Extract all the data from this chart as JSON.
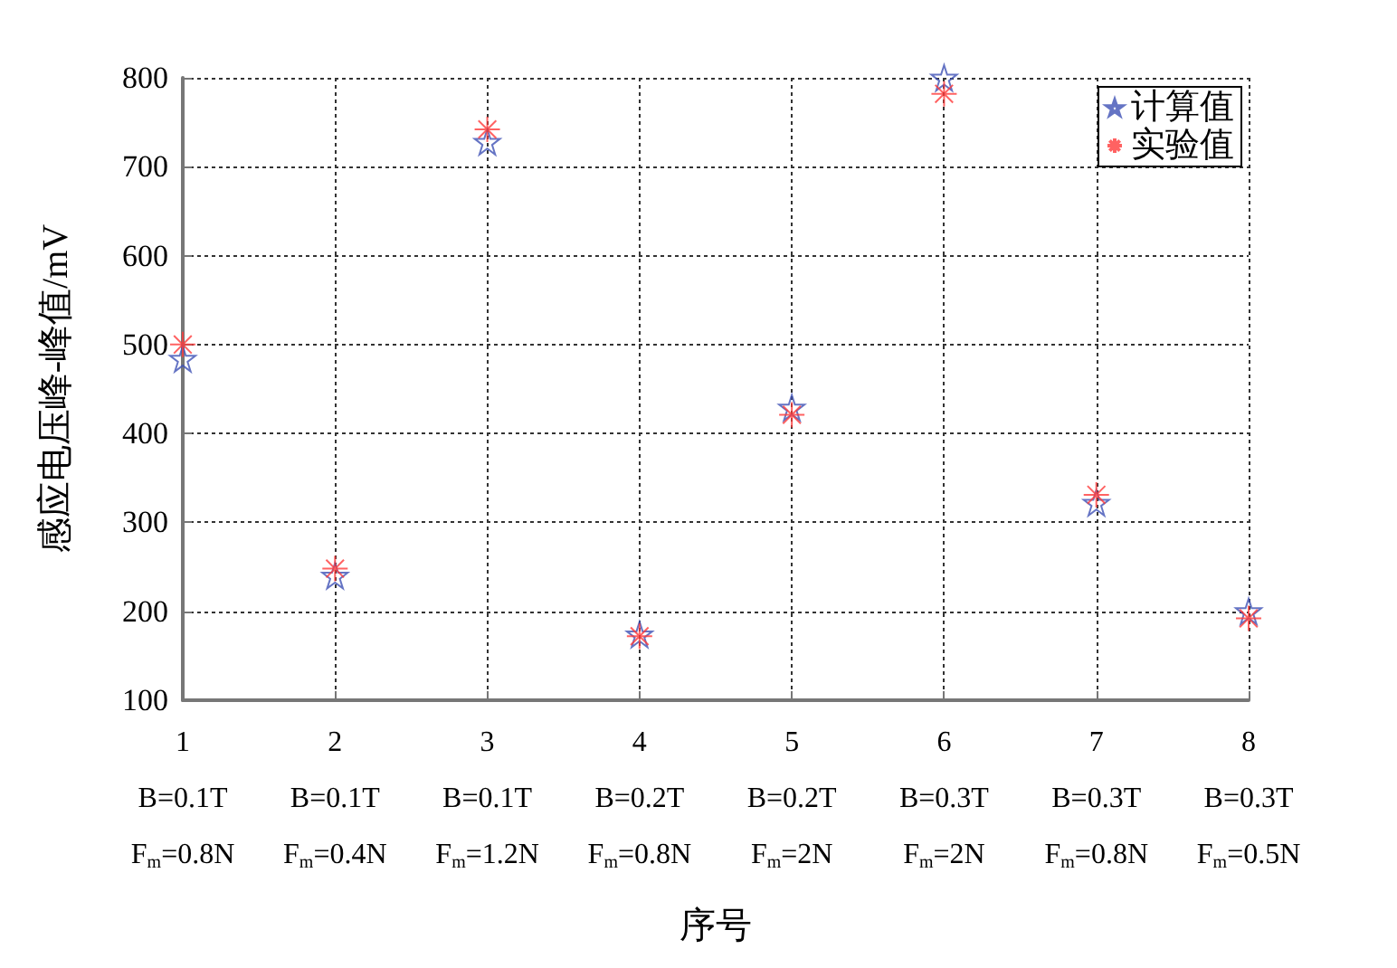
{
  "chart_data": {
    "type": "scatter",
    "xlabel": "序号",
    "ylabel": "感应电压峰-峰值/mV",
    "categories": [
      "1\nB=0.1T\nF$_{m}$=0.8N",
      "2\nB=0.1T\nF$_{m}$=0.4N",
      "3\nB=0.1T\nF$_{m}$=1.2N",
      "4\nB=0.2T\nF$_{m}$=0.8N",
      "5\nB=0.2T\nF$_{m}$=2N",
      "6\nB=0.3T\nF$_{m}$=2N",
      "7\nB=0.3T\nF$_{m}$=0.8N",
      "8\nB=0.3T\nF$_{m}$=0.5N"
    ],
    "series": [
      {
        "name": "计算值",
        "color": "#3f51b5",
        "marker": "star",
        "values": [
          484,
          240,
          728,
          174,
          429,
          800,
          322,
          200
        ]
      },
      {
        "name": "实验值",
        "color": "#ff3b3b",
        "marker": "cross",
        "values": [
          500,
          248,
          742,
          172,
          421,
          782,
          331,
          192
        ]
      }
    ],
    "ylim": [
      100,
      800
    ],
    "yticks": [
      100,
      200,
      300,
      400,
      500,
      600,
      700,
      800
    ],
    "grid": true,
    "legend": "top right"
  }
}
